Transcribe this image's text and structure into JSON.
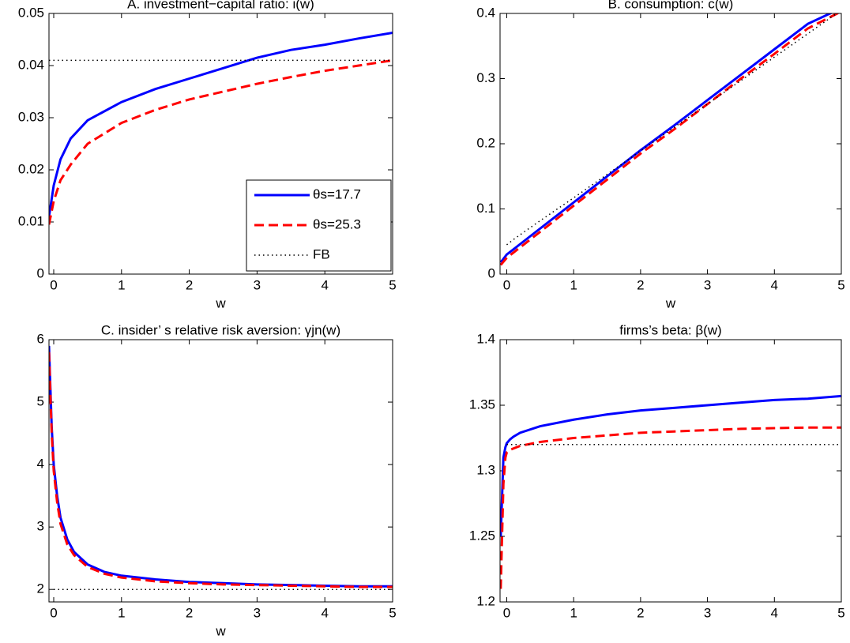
{
  "chart_data": [
    {
      "type": "line",
      "title": "A. investment−capital ratio: i(w)",
      "xlabel": "w",
      "x": [
        -0.07,
        0,
        0.1,
        0.25,
        0.5,
        1,
        1.5,
        2,
        2.5,
        3,
        3.5,
        4,
        4.5,
        5
      ],
      "series": [
        {
          "name": "θs=17.7",
          "color": "#0000ff",
          "style": "solid",
          "values": [
            0.011,
            0.017,
            0.022,
            0.026,
            0.0295,
            0.033,
            0.0355,
            0.0375,
            0.0395,
            0.0415,
            0.043,
            0.044,
            0.0452,
            0.0463
          ]
        },
        {
          "name": "θs=25.3",
          "color": "#ff0000",
          "style": "dashed",
          "values": [
            0.0095,
            0.014,
            0.018,
            0.021,
            0.025,
            0.029,
            0.0315,
            0.0335,
            0.035,
            0.0365,
            0.0378,
            0.039,
            0.04,
            0.041
          ]
        },
        {
          "name": "FB",
          "color": "#000000",
          "style": "dotted",
          "values": [
            0.041,
            0.041,
            0.041,
            0.041,
            0.041,
            0.041,
            0.041,
            0.041,
            0.041,
            0.041,
            0.041,
            0.041,
            0.041,
            0.041
          ]
        }
      ],
      "xlim": [
        -0.07,
        5
      ],
      "ylim": [
        0,
        0.05
      ],
      "xticks": [
        0,
        1,
        2,
        3,
        4,
        5
      ],
      "yticks": [
        0,
        0.01,
        0.02,
        0.03,
        0.04,
        0.05
      ],
      "legend": "lower right"
    },
    {
      "type": "line",
      "title": "B. consumption: c(w)",
      "xlabel": "w",
      "x": [
        -0.09,
        0,
        0.1,
        0.25,
        0.5,
        1,
        1.5,
        2,
        2.5,
        3,
        3.5,
        4,
        4.5,
        5
      ],
      "series": [
        {
          "color": "#0000ff",
          "style": "solid",
          "values": [
            0.018,
            0.03,
            0.038,
            0.05,
            0.07,
            0.11,
            0.15,
            0.19,
            0.228,
            0.267,
            0.306,
            0.345,
            0.384,
            0.408
          ]
        },
        {
          "color": "#ff0000",
          "style": "dashed",
          "values": [
            0.014,
            0.025,
            0.033,
            0.045,
            0.065,
            0.105,
            0.145,
            0.185,
            0.222,
            0.261,
            0.3,
            0.338,
            0.377,
            0.403
          ]
        },
        {
          "color": "#000000",
          "style": "dotted",
          "values": [
            null,
            0.045,
            0.053,
            0.064,
            0.082,
            0.117,
            0.153,
            0.189,
            0.225,
            0.261,
            0.297,
            0.333,
            0.369,
            0.405
          ]
        }
      ],
      "xlim": [
        -0.1,
        5
      ],
      "ylim": [
        0,
        0.4
      ],
      "xticks": [
        0,
        1,
        2,
        3,
        4,
        5
      ],
      "yticks": [
        0,
        0.1,
        0.2,
        0.3,
        0.4
      ]
    },
    {
      "type": "line",
      "title": "C. insider’ s relative risk aversion: γjn(w)",
      "xlabel": "w",
      "x": [
        -0.07,
        -0.03,
        0,
        0.05,
        0.1,
        0.2,
        0.3,
        0.5,
        0.75,
        1,
        1.5,
        2,
        2.5,
        3,
        3.5,
        4,
        4.5,
        5
      ],
      "series": [
        {
          "color": "#0000ff",
          "style": "solid",
          "values": [
            5.9,
            4.6,
            4.0,
            3.5,
            3.15,
            2.8,
            2.6,
            2.4,
            2.28,
            2.22,
            2.16,
            2.12,
            2.1,
            2.08,
            2.07,
            2.06,
            2.05,
            2.05
          ]
        },
        {
          "color": "#ff0000",
          "style": "dashed",
          "values": [
            5.8,
            4.5,
            3.9,
            3.4,
            3.05,
            2.72,
            2.55,
            2.36,
            2.25,
            2.19,
            2.13,
            2.1,
            2.08,
            2.07,
            2.06,
            2.05,
            2.04,
            2.04
          ]
        },
        {
          "color": "#000000",
          "style": "dotted",
          "values": [
            null,
            null,
            2,
            2,
            2,
            2,
            2,
            2,
            2,
            2,
            2,
            2,
            2,
            2,
            2,
            2,
            2,
            2
          ]
        }
      ],
      "xlim": [
        -0.07,
        5
      ],
      "ylim": [
        1.8,
        6
      ],
      "xticks": [
        0,
        1,
        2,
        3,
        4,
        5
      ],
      "yticks": [
        2,
        3,
        4,
        5,
        6
      ]
    },
    {
      "type": "line",
      "title": "firms’s beta: β(w)",
      "x": [
        -0.09,
        -0.05,
        -0.02,
        0,
        0.05,
        0.1,
        0.2,
        0.5,
        1,
        1.5,
        2,
        2.5,
        3,
        3.5,
        4,
        4.5,
        5
      ],
      "series": [
        {
          "color": "#0000ff",
          "style": "solid",
          "values": [
            1.25,
            1.31,
            1.318,
            1.321,
            1.324,
            1.326,
            1.329,
            1.334,
            1.339,
            1.343,
            1.346,
            1.348,
            1.35,
            1.352,
            1.354,
            1.355,
            1.357
          ]
        },
        {
          "color": "#ff0000",
          "style": "dashed",
          "values": [
            1.21,
            1.29,
            1.31,
            1.314,
            1.316,
            1.317,
            1.319,
            1.322,
            1.325,
            1.327,
            1.329,
            1.33,
            1.331,
            1.332,
            1.3325,
            1.333,
            1.333
          ]
        },
        {
          "color": "#000000",
          "style": "dotted",
          "values": [
            null,
            null,
            null,
            1.32,
            1.32,
            1.32,
            1.32,
            1.32,
            1.32,
            1.32,
            1.32,
            1.32,
            1.32,
            1.32,
            1.32,
            1.32,
            1.32
          ]
        }
      ],
      "xlim": [
        -0.1,
        5
      ],
      "ylim": [
        1.2,
        1.4
      ],
      "xticks": [
        0,
        1,
        2,
        3,
        4,
        5
      ],
      "yticks": [
        1.2,
        1.25,
        1.3,
        1.35,
        1.4
      ]
    }
  ]
}
